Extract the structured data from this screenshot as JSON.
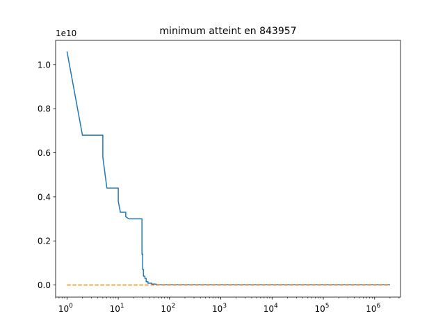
{
  "chart_data": {
    "type": "line",
    "title": "minimum atteint en 843957",
    "xlabel": "",
    "ylabel": "",
    "xscale": "log",
    "xlim": [
      0.6,
      3200000
    ],
    "ylim": [
      -0.055,
      1.11
    ],
    "y_offset_label": "1e10",
    "grid": false,
    "x_ticks": [
      {
        "value": 1,
        "base": "10",
        "exp": "0"
      },
      {
        "value": 10,
        "base": "10",
        "exp": "1"
      },
      {
        "value": 100,
        "base": "10",
        "exp": "2"
      },
      {
        "value": 1000,
        "base": "10",
        "exp": "3"
      },
      {
        "value": 10000,
        "base": "10",
        "exp": "4"
      },
      {
        "value": 100000,
        "base": "10",
        "exp": "5"
      },
      {
        "value": 1000000,
        "base": "10",
        "exp": "6"
      }
    ],
    "y_ticks": [
      {
        "value": 0.0,
        "label": "0.0"
      },
      {
        "value": 0.2,
        "label": "0.2"
      },
      {
        "value": 0.4,
        "label": "0.4"
      },
      {
        "value": 0.6,
        "label": "0.6"
      },
      {
        "value": 0.8,
        "label": "0.8"
      },
      {
        "value": 1.0,
        "label": "1.0"
      }
    ],
    "series": [
      {
        "color": "#1f77b4",
        "style": "solid",
        "x": [
          1,
          2,
          5,
          5,
          6,
          6,
          10,
          10,
          11,
          11,
          14,
          14,
          16,
          16,
          29,
          29,
          30,
          30,
          31,
          31,
          33,
          33,
          35,
          35,
          38,
          38,
          45,
          45,
          55,
          55,
          2000000
        ],
        "y": [
          1.06,
          0.68,
          0.68,
          0.58,
          0.44,
          0.44,
          0.44,
          0.38,
          0.33,
          0.33,
          0.33,
          0.31,
          0.3,
          0.3,
          0.3,
          0.14,
          0.14,
          0.07,
          0.07,
          0.04,
          0.04,
          0.03,
          0.03,
          0.015,
          0.015,
          0.008,
          0.008,
          0.004,
          0.004,
          0.001,
          0.001
        ]
      },
      {
        "color": "#ff7f0e",
        "style": "dashed",
        "x": [
          1,
          2000000
        ],
        "y": [
          0.0,
          0.0
        ]
      }
    ]
  }
}
